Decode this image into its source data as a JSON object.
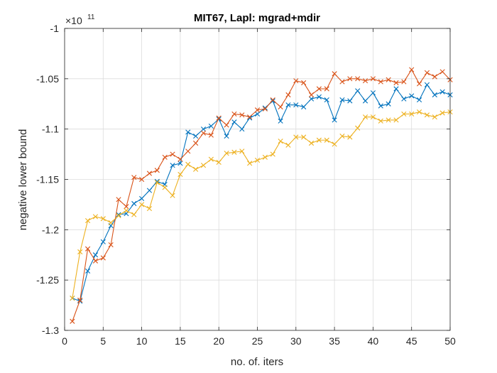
{
  "chart_data": {
    "type": "line",
    "title": "MIT67, Lapl: mgrad+mdir",
    "xlabel": "no. of. iters",
    "ylabel": "negative lower bound",
    "y_exponent_base": "×10",
    "y_exponent_power": "11",
    "xlim": [
      0,
      50
    ],
    "ylim": [
      -1.3,
      -1.0
    ],
    "xticks": [
      0,
      5,
      10,
      15,
      20,
      25,
      30,
      35,
      40,
      45,
      50
    ],
    "yticks": [
      -1.3,
      -1.25,
      -1.2,
      -1.15,
      -1.1,
      -1.05,
      -1
    ],
    "ytick_labels": [
      "-1.3",
      "-1.25",
      "-1.2",
      "-1.15",
      "-1.1",
      "-1.05",
      "-1"
    ],
    "grid": true,
    "marker": "x",
    "x": [
      1,
      2,
      3,
      4,
      5,
      6,
      7,
      8,
      9,
      10,
      11,
      12,
      13,
      14,
      15,
      16,
      17,
      18,
      19,
      20,
      21,
      22,
      23,
      24,
      25,
      26,
      27,
      28,
      29,
      30,
      31,
      32,
      33,
      34,
      35,
      36,
      37,
      38,
      39,
      40,
      41,
      42,
      43,
      44,
      45,
      46,
      47,
      48,
      49,
      50
    ],
    "series": [
      {
        "color": "#0072BD",
        "values": [
          -1.268,
          -1.271,
          -1.241,
          -1.225,
          -1.212,
          -1.196,
          -1.185,
          -1.184,
          -1.174,
          -1.169,
          -1.161,
          -1.152,
          -1.155,
          -1.136,
          -1.134,
          -1.103,
          -1.107,
          -1.1,
          -1.097,
          -1.09,
          -1.107,
          -1.093,
          -1.1,
          -1.089,
          -1.085,
          -1.079,
          -1.072,
          -1.092,
          -1.076,
          -1.076,
          -1.078,
          -1.07,
          -1.068,
          -1.071,
          -1.091,
          -1.071,
          -1.072,
          -1.062,
          -1.072,
          -1.064,
          -1.077,
          -1.075,
          -1.06,
          -1.07,
          -1.067,
          -1.071,
          -1.056,
          -1.066,
          -1.063,
          -1.066
        ]
      },
      {
        "color": "#D95319",
        "values": [
          -1.291,
          -1.27,
          -1.219,
          -1.231,
          -1.228,
          -1.215,
          -1.17,
          -1.177,
          -1.148,
          -1.15,
          -1.144,
          -1.141,
          -1.128,
          -1.125,
          -1.13,
          -1.122,
          -1.114,
          -1.104,
          -1.106,
          -1.089,
          -1.096,
          -1.085,
          -1.086,
          -1.088,
          -1.081,
          -1.08,
          -1.071,
          -1.078,
          -1.066,
          -1.052,
          -1.054,
          -1.066,
          -1.06,
          -1.06,
          -1.045,
          -1.053,
          -1.05,
          -1.05,
          -1.052,
          -1.05,
          -1.053,
          -1.051,
          -1.054,
          -1.053,
          -1.041,
          -1.055,
          -1.044,
          -1.048,
          -1.043,
          -1.051
        ]
      },
      {
        "color": "#EDB120",
        "values": [
          -1.268,
          -1.222,
          -1.191,
          -1.187,
          -1.189,
          -1.193,
          -1.186,
          -1.181,
          -1.185,
          -1.175,
          -1.179,
          -1.153,
          -1.158,
          -1.166,
          -1.145,
          -1.135,
          -1.14,
          -1.136,
          -1.13,
          -1.133,
          -1.124,
          -1.123,
          -1.122,
          -1.134,
          -1.131,
          -1.128,
          -1.125,
          -1.112,
          -1.116,
          -1.108,
          -1.108,
          -1.114,
          -1.111,
          -1.111,
          -1.115,
          -1.107,
          -1.108,
          -1.099,
          -1.088,
          -1.088,
          -1.092,
          -1.091,
          -1.091,
          -1.085,
          -1.085,
          -1.083,
          -1.086,
          -1.088,
          -1.084,
          -1.083
        ]
      }
    ]
  }
}
